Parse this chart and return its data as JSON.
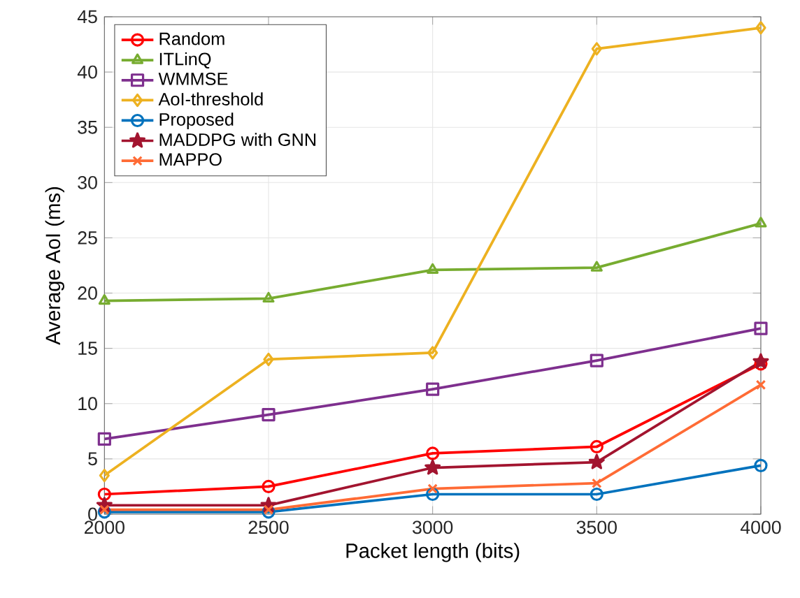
{
  "chart_data": {
    "type": "line",
    "xlabel": "Packet length (bits)",
    "ylabel": "Average AoI (ms)",
    "x": [
      2000,
      2500,
      3000,
      3500,
      4000
    ],
    "xlim": [
      2000,
      4000
    ],
    "xticks": [
      2000,
      2500,
      3000,
      3500,
      4000
    ],
    "ylim": [
      0,
      45
    ],
    "yticks": [
      0,
      5,
      10,
      15,
      20,
      25,
      30,
      35,
      40,
      45
    ],
    "grid": true,
    "legend": "top left",
    "series": [
      {
        "name": "Random",
        "color": "#ff0000",
        "marker": "circle",
        "values": [
          1.8,
          2.5,
          5.5,
          6.1,
          13.6
        ]
      },
      {
        "name": "ITLinQ",
        "color": "#77ac30",
        "marker": "triangle",
        "values": [
          19.3,
          19.5,
          22.1,
          22.3,
          26.3
        ]
      },
      {
        "name": "WMMSE",
        "color": "#7e2f8e",
        "marker": "square",
        "values": [
          6.8,
          9.0,
          11.3,
          13.9,
          16.8
        ]
      },
      {
        "name": "AoI-threshold",
        "color": "#edb120",
        "marker": "diamond",
        "values": [
          3.5,
          14.0,
          14.6,
          42.1,
          44.0
        ]
      },
      {
        "name": "Proposed",
        "color": "#0072bd",
        "marker": "circle",
        "values": [
          0.2,
          0.2,
          1.8,
          1.8,
          4.4
        ]
      },
      {
        "name": "MADDPG with GNN",
        "color": "#a2142f",
        "marker": "star",
        "values": [
          0.8,
          0.8,
          4.2,
          4.7,
          13.8
        ]
      },
      {
        "name": "MAPPO",
        "color": "#ff6b35",
        "marker": "cross",
        "values": [
          0.4,
          0.4,
          2.3,
          2.8,
          11.7
        ]
      }
    ]
  }
}
